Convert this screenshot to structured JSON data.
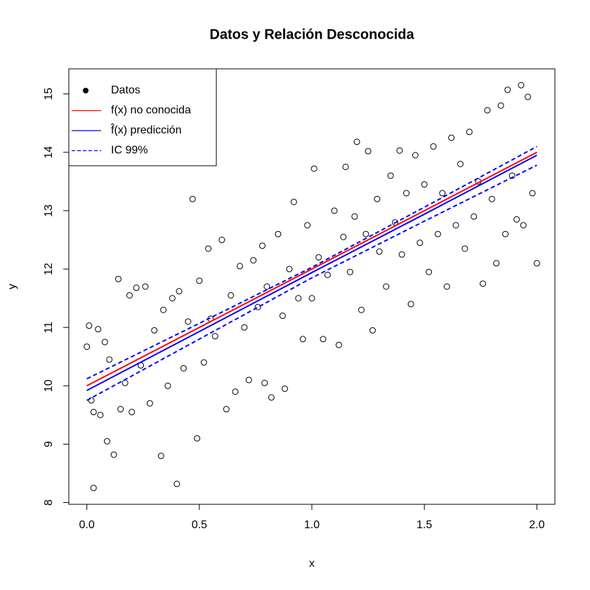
{
  "chart_data": {
    "type": "scatter",
    "title": "Datos y Relación Desconocida",
    "x_label": "x",
    "y_label": "y",
    "xlim": [
      -0.08,
      2.08
    ],
    "ylim": [
      7.97,
      15.43
    ],
    "xticks": [
      {
        "value": 0,
        "label": "0.0"
      },
      0.5,
      {
        "value": 1,
        "label": "1.0"
      },
      1.5,
      {
        "value": 2,
        "label": "2.0"
      }
    ],
    "yticks": [
      8,
      9,
      10,
      11,
      12,
      13,
      14,
      15
    ],
    "grid": false,
    "legend": "top-left",
    "series": [
      {
        "name": "Datos",
        "color": "#000000",
        "style": "points",
        "x": [
          0.0,
          0.01,
          0.02,
          0.03,
          0.03,
          0.05,
          0.06,
          0.08,
          0.09,
          0.1,
          0.12,
          0.14,
          0.15,
          0.17,
          0.19,
          0.2,
          0.22,
          0.24,
          0.26,
          0.28,
          0.3,
          0.33,
          0.34,
          0.36,
          0.38,
          0.4,
          0.41,
          0.43,
          0.45,
          0.47,
          0.49,
          0.5,
          0.52,
          0.54,
          0.55,
          0.57,
          0.6,
          0.62,
          0.64,
          0.66,
          0.68,
          0.7,
          0.72,
          0.74,
          0.76,
          0.78,
          0.79,
          0.8,
          0.82,
          0.85,
          0.87,
          0.88,
          0.9,
          0.92,
          0.94,
          0.96,
          0.98,
          1.0,
          1.01,
          1.03,
          1.05,
          1.07,
          1.1,
          1.12,
          1.14,
          1.15,
          1.17,
          1.19,
          1.2,
          1.22,
          1.24,
          1.25,
          1.27,
          1.29,
          1.3,
          1.33,
          1.35,
          1.37,
          1.39,
          1.4,
          1.42,
          1.44,
          1.46,
          1.48,
          1.5,
          1.52,
          1.54,
          1.56,
          1.58,
          1.6,
          1.62,
          1.64,
          1.66,
          1.68,
          1.7,
          1.72,
          1.74,
          1.76,
          1.78,
          1.8,
          1.82,
          1.84,
          1.86,
          1.87,
          1.89,
          1.91,
          1.93,
          1.94,
          1.96,
          1.98,
          2.0
        ],
        "values": [
          10.67,
          11.03,
          9.75,
          8.25,
          9.55,
          10.97,
          9.5,
          10.75,
          9.05,
          10.45,
          8.82,
          11.83,
          9.6,
          10.05,
          11.55,
          9.55,
          11.68,
          10.35,
          11.7,
          9.7,
          10.95,
          8.8,
          11.3,
          10.0,
          11.5,
          8.32,
          11.62,
          10.3,
          11.1,
          13.2,
          9.1,
          11.8,
          10.4,
          12.35,
          11.15,
          10.85,
          12.5,
          9.6,
          11.55,
          9.9,
          12.05,
          11.0,
          10.1,
          12.15,
          11.35,
          12.4,
          10.05,
          11.7,
          9.8,
          12.6,
          11.2,
          9.95,
          12.0,
          13.15,
          11.5,
          10.8,
          12.75,
          11.5,
          13.72,
          12.2,
          10.8,
          11.9,
          13.0,
          10.7,
          12.55,
          13.75,
          11.95,
          12.9,
          14.18,
          11.3,
          12.6,
          14.02,
          10.95,
          13.2,
          12.3,
          11.7,
          13.6,
          12.8,
          14.03,
          12.25,
          13.3,
          11.4,
          13.95,
          12.45,
          13.45,
          11.95,
          14.1,
          12.6,
          13.3,
          11.7,
          14.25,
          12.75,
          13.8,
          12.35,
          14.35,
          12.9,
          13.5,
          11.75,
          14.72,
          13.2,
          12.1,
          14.8,
          12.6,
          15.07,
          13.6,
          12.85,
          15.15,
          12.75,
          14.95,
          13.3,
          12.1
        ]
      },
      {
        "name": "f(x) no conocida",
        "color": "#ff0000",
        "style": "line",
        "x": [
          0,
          2
        ],
        "values": [
          10.0,
          14.0
        ]
      },
      {
        "name": "f̂(x) predicción",
        "color": "#0000ff",
        "style": "line",
        "x": [
          0,
          0.5,
          1,
          1.5,
          2
        ],
        "values": [
          9.92,
          10.93,
          11.94,
          12.94,
          13.95
        ]
      },
      {
        "name": "IC 99%",
        "color": "#0000ff",
        "style": "dashed",
        "x": [
          0,
          0.5,
          1,
          1.5,
          2
        ],
        "lower": [
          9.75,
          10.8,
          11.85,
          12.82,
          13.78
        ],
        "upper": [
          10.12,
          11.07,
          12.03,
          13.06,
          14.1
        ]
      }
    ]
  }
}
